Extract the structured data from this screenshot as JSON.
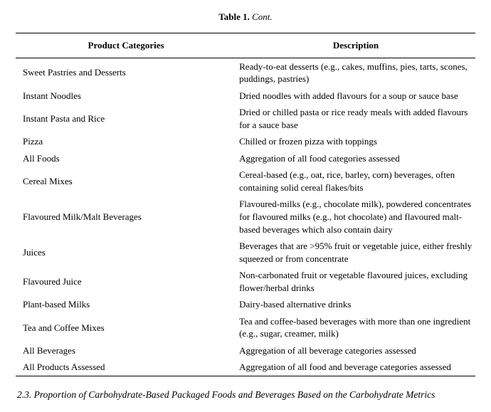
{
  "caption": {
    "label": "Table 1.",
    "cont": "Cont."
  },
  "headers": {
    "col1": "Product Categories",
    "col2": "Description"
  },
  "rows": [
    {
      "category": "Sweet Pastries and Desserts",
      "description": "Ready-to-eat desserts (e.g., cakes, muffins, pies, tarts, scones, puddings, pastries)"
    },
    {
      "category": "Instant Noodles",
      "description": "Dried noodles with added flavours for a soup or sauce base"
    },
    {
      "category": "Instant Pasta and Rice",
      "description": "Dried or chilled pasta or rice ready meals with added flavours for a sauce base"
    },
    {
      "category": "Pizza",
      "description": "Chilled or frozen pizza with toppings"
    },
    {
      "category": "All Foods",
      "description": "Aggregation of all food categories assessed"
    },
    {
      "category": "Cereal Mixes",
      "description": "Cereal-based (e.g., oat, rice, barley, corn) beverages, often containing solid cereal flakes/bits"
    },
    {
      "category": "Flavoured Milk/Malt Beverages",
      "description": "Flavoured-milks (e.g., chocolate milk), powdered concentrates for flavoured milks (e.g., hot chocolate) and flavoured malt-based beverages which also contain dairy"
    },
    {
      "category": "Juices",
      "description": "Beverages that are >95% fruit or vegetable juice, either freshly squeezed or from concentrate"
    },
    {
      "category": "Flavoured Juice",
      "description": "Non-carbonated fruit or vegetable flavoured juices, excluding flower/herbal drinks"
    },
    {
      "category": "Plant-based Milks",
      "description": "Dairy-based alternative drinks"
    },
    {
      "category": "Tea and Coffee Mixes",
      "description": "Tea and coffee-based beverages with more than one ingredient (e.g., sugar, creamer, milk)"
    },
    {
      "category": "All Beverages",
      "description": "Aggregation of all beverage categories assessed"
    },
    {
      "category": "All Products Assessed",
      "description": "Aggregation of all food and beverage categories assessed"
    }
  ],
  "section_heading": "2.3. Proportion of Carbohydrate-Based Packaged Foods and Beverages Based on the Carbohydrate Metrics"
}
